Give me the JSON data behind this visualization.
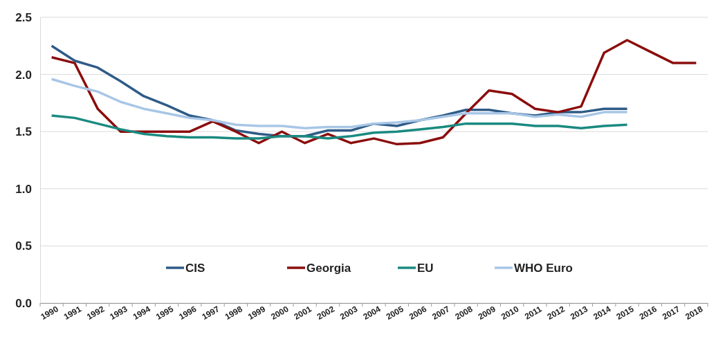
{
  "chart_data": {
    "type": "line",
    "categories": [
      "1990",
      "1991",
      "1992",
      "1993",
      "1994",
      "1995",
      "1996",
      "1997",
      "1998",
      "1999",
      "2000",
      "2001",
      "2002",
      "2003",
      "2004",
      "2005",
      "2006",
      "2007",
      "2008",
      "2009",
      "2010",
      "2011",
      "2012",
      "2013",
      "2014",
      "2015",
      "2016",
      "2017",
      "2018"
    ],
    "series": [
      {
        "name": "CIS",
        "color": "#2e5b87",
        "values": [
          2.25,
          2.12,
          2.06,
          1.94,
          1.81,
          1.73,
          1.64,
          1.6,
          1.51,
          1.48,
          1.46,
          1.46,
          1.51,
          1.51,
          1.57,
          1.55,
          1.6,
          1.64,
          1.69,
          1.69,
          1.66,
          1.64,
          1.67,
          1.67,
          1.7,
          1.7,
          null,
          null,
          null
        ]
      },
      {
        "name": "Georgia",
        "color": "#8b0d0d",
        "values": [
          2.15,
          2.1,
          1.7,
          1.5,
          1.5,
          1.5,
          1.5,
          1.59,
          1.5,
          1.4,
          1.5,
          1.4,
          1.48,
          1.4,
          1.44,
          1.39,
          1.4,
          1.45,
          1.66,
          1.86,
          1.83,
          1.7,
          1.67,
          1.72,
          2.19,
          2.3,
          2.2,
          2.1,
          2.1
        ]
      },
      {
        "name": "EU",
        "color": "#1a8a80",
        "values": [
          1.64,
          1.62,
          1.57,
          1.52,
          1.48,
          1.46,
          1.45,
          1.45,
          1.44,
          1.44,
          1.46,
          1.46,
          1.44,
          1.46,
          1.49,
          1.5,
          1.52,
          1.54,
          1.57,
          1.57,
          1.57,
          1.55,
          1.55,
          1.53,
          1.55,
          1.56,
          null,
          null,
          null
        ]
      },
      {
        "name": "WHO Euro",
        "color": "#a8c6e6",
        "values": [
          1.96,
          1.9,
          1.85,
          1.76,
          1.7,
          1.66,
          1.62,
          1.6,
          1.56,
          1.55,
          1.55,
          1.53,
          1.54,
          1.54,
          1.57,
          1.58,
          1.6,
          1.63,
          1.66,
          1.66,
          1.66,
          1.63,
          1.65,
          1.63,
          1.67,
          1.67,
          null,
          null,
          null
        ]
      }
    ],
    "ylim": [
      0,
      2.5
    ],
    "yticks": [
      {
        "value": 0,
        "label": "0.0"
      },
      {
        "value": 0.5,
        "label": "0.5"
      },
      {
        "value": 1,
        "label": "1.0"
      },
      {
        "value": 1.5,
        "label": "1.5"
      },
      {
        "value": 2,
        "label": "2.0"
      },
      {
        "value": 2.5,
        "label": "2.5"
      }
    ],
    "grid": "y",
    "legend": "bottom",
    "marker": "none",
    "line_style": "solid"
  }
}
